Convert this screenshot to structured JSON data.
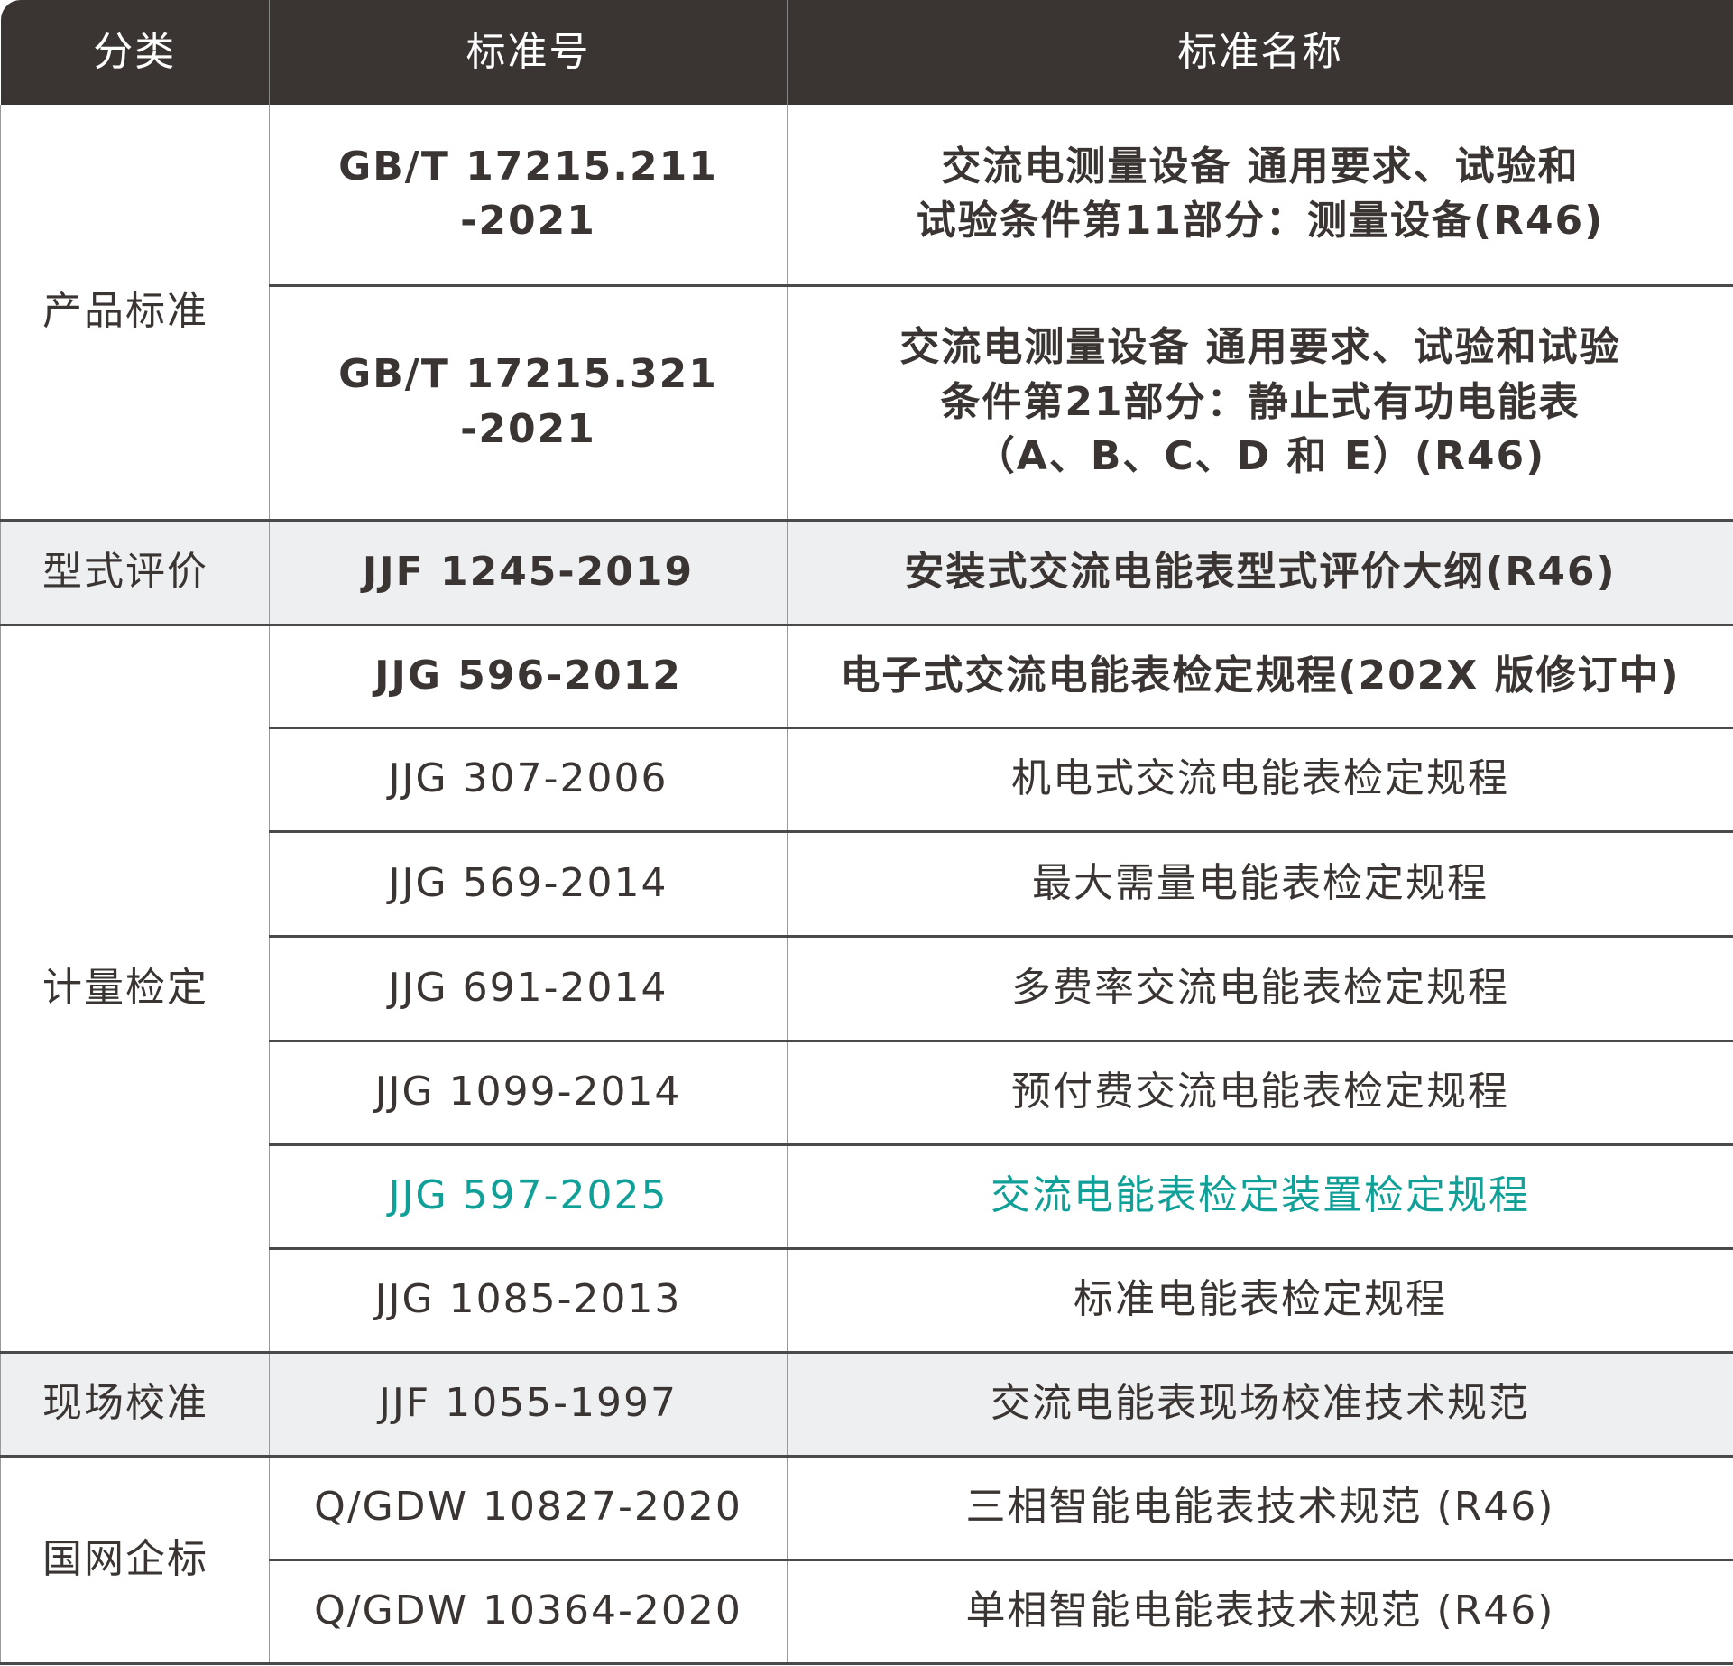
{
  "colors": {
    "header_bg": "#3a3532",
    "text": "#3a3532",
    "highlight": "#11a098",
    "gray_row": "#eeeff1"
  },
  "header": {
    "category": "分类",
    "code": "标准号",
    "name": "标准名称"
  },
  "groups": [
    {
      "category": "产品标准",
      "rows": [
        {
          "code": "GB/T 17215.211\n-2021",
          "name": "交流电测量设备 通用要求、试验和\n试验条件第11部分：测量设备(R46)"
        },
        {
          "code": "GB/T 17215.321\n-2021",
          "name": "交流电测量设备 通用要求、试验和试验\n条件第21部分：静止式有功电能表\n（A、B、C、D 和 E）(R46)"
        }
      ]
    },
    {
      "category": "型式评价",
      "rows": [
        {
          "code": "JJF 1245-2019",
          "name": "安装式交流电能表型式评价大纲(R46)"
        }
      ]
    },
    {
      "category": "计量检定",
      "rows": [
        {
          "code": "JJG 596-2012",
          "name": "电子式交流电能表检定规程(202X 版修订中)"
        },
        {
          "code": "JJG 307-2006",
          "name": "机电式交流电能表检定规程"
        },
        {
          "code": "JJG 569-2014",
          "name": "最大需量电能表检定规程"
        },
        {
          "code": "JJG 691-2014",
          "name": "多费率交流电能表检定规程"
        },
        {
          "code": "JJG 1099-2014",
          "name": "预付费交流电能表检定规程"
        },
        {
          "code": "JJG 597-2025",
          "name": "交流电能表检定装置检定规程"
        },
        {
          "code": "JJG 1085-2013",
          "name": "标准电能表检定规程"
        }
      ]
    },
    {
      "category": "现场校准",
      "rows": [
        {
          "code": "JJF 1055-1997",
          "name": "交流电能表现场校准技术规范"
        }
      ]
    },
    {
      "category": "国网企标",
      "rows": [
        {
          "code": "Q/GDW 10827-2020",
          "name": "三相智能电能表技术规范 (R46)"
        },
        {
          "code": "Q/GDW 10364-2020",
          "name": "单相智能电能表技术规范 (R46)"
        }
      ]
    }
  ]
}
